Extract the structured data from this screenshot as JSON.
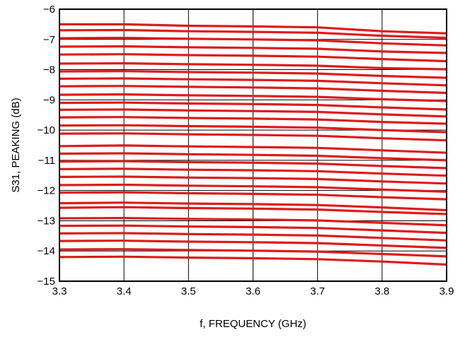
{
  "chart_data": {
    "type": "line",
    "title": "",
    "xlabel": "f, FREQUENCY (GHz)",
    "ylabel": "S31, PEAKING (dB)",
    "xlim": [
      3.3,
      3.9
    ],
    "ylim": [
      -15,
      -6
    ],
    "x_ticks": [
      3.3,
      3.4,
      3.5,
      3.6,
      3.7,
      3.8,
      3.9
    ],
    "x_tick_labels": [
      "3.3",
      "3.4",
      "3.5",
      "3.6",
      "3.7",
      "3.8",
      "3.9"
    ],
    "y_ticks": [
      -6,
      -7,
      -8,
      -9,
      -10,
      -11,
      -12,
      -13,
      -14,
      -15
    ],
    "y_tick_labels": [
      "−6",
      "−7",
      "−8",
      "−9",
      "−10",
      "−11",
      "−12",
      "−13",
      "−14",
      "−15"
    ],
    "grid": true,
    "line_color": "#dd1c1c",
    "grid_color": "#000000",
    "x": [
      3.3,
      3.4,
      3.5,
      3.6,
      3.7,
      3.8,
      3.9
    ],
    "series": [
      {
        "values": [
          -6.5,
          -6.5,
          -6.55,
          -6.57,
          -6.6,
          -6.73,
          -6.8
        ]
      },
      {
        "values": [
          -6.7,
          -6.69,
          -6.73,
          -6.75,
          -6.78,
          -6.88,
          -6.95
        ]
      },
      {
        "values": [
          -6.96,
          -6.95,
          -6.98,
          -7.0,
          -7.03,
          -7.13,
          -7.2
        ]
      },
      {
        "values": [
          -7.24,
          -7.23,
          -7.26,
          -7.28,
          -7.31,
          -7.4,
          -7.45
        ]
      },
      {
        "values": [
          -7.5,
          -7.49,
          -7.52,
          -7.54,
          -7.57,
          -7.65,
          -7.72
        ]
      },
      {
        "values": [
          -7.8,
          -7.79,
          -7.82,
          -7.84,
          -7.87,
          -7.95,
          -7.99
        ]
      },
      {
        "values": [
          -8.06,
          -8.05,
          -8.08,
          -8.1,
          -8.13,
          -8.21,
          -8.27
        ]
      },
      {
        "values": [
          -8.3,
          -8.29,
          -8.32,
          -8.34,
          -8.37,
          -8.45,
          -8.52
        ]
      },
      {
        "values": [
          -8.55,
          -8.54,
          -8.57,
          -8.59,
          -8.62,
          -8.7,
          -8.77
        ]
      },
      {
        "values": [
          -8.83,
          -8.82,
          -8.85,
          -8.87,
          -8.9,
          -8.98,
          -9.04
        ]
      },
      {
        "values": [
          -9.1,
          -9.09,
          -9.12,
          -9.14,
          -9.17,
          -9.25,
          -9.32
        ]
      },
      {
        "values": [
          -9.33,
          -9.32,
          -9.35,
          -9.37,
          -9.4,
          -9.48,
          -9.55
        ]
      },
      {
        "values": [
          -9.58,
          -9.57,
          -9.6,
          -9.62,
          -9.65,
          -9.73,
          -9.79
        ]
      },
      {
        "values": [
          -9.85,
          -9.84,
          -9.87,
          -9.89,
          -9.92,
          -10.0,
          -10.07
        ]
      },
      {
        "values": [
          -10.12,
          -10.11,
          -10.14,
          -10.16,
          -10.19,
          -10.27,
          -10.34
        ]
      },
      {
        "values": [
          -10.53,
          -10.51,
          -10.54,
          -10.56,
          -10.59,
          -10.67,
          -10.75
        ]
      },
      {
        "values": [
          -10.78,
          -10.77,
          -10.8,
          -10.82,
          -10.85,
          -10.93,
          -11.0
        ]
      },
      {
        "values": [
          -11.04,
          -11.03,
          -11.06,
          -11.08,
          -11.11,
          -11.19,
          -11.26
        ]
      },
      {
        "values": [
          -11.29,
          -11.28,
          -11.31,
          -11.33,
          -11.36,
          -11.44,
          -11.51
        ]
      },
      {
        "values": [
          -11.55,
          -11.54,
          -11.57,
          -11.59,
          -11.62,
          -11.7,
          -11.77
        ]
      },
      {
        "values": [
          -11.82,
          -11.81,
          -11.84,
          -11.86,
          -11.89,
          -11.97,
          -12.04
        ]
      },
      {
        "values": [
          -12.07,
          -12.06,
          -12.09,
          -12.11,
          -12.14,
          -12.22,
          -12.29
        ]
      },
      {
        "values": [
          -12.42,
          -12.4,
          -12.43,
          -12.45,
          -12.48,
          -12.56,
          -12.65
        ]
      },
      {
        "values": [
          -12.57,
          -12.55,
          -12.58,
          -12.6,
          -12.63,
          -12.71,
          -12.78
        ]
      },
      {
        "values": [
          -12.92,
          -12.91,
          -12.94,
          -12.96,
          -12.99,
          -13.07,
          -13.15
        ]
      },
      {
        "values": [
          -13.17,
          -13.16,
          -13.19,
          -13.21,
          -13.24,
          -13.32,
          -13.4
        ]
      },
      {
        "values": [
          -13.42,
          -13.41,
          -13.44,
          -13.46,
          -13.49,
          -13.57,
          -13.65
        ]
      },
      {
        "values": [
          -13.67,
          -13.66,
          -13.69,
          -13.71,
          -13.74,
          -13.82,
          -13.9
        ]
      },
      {
        "values": [
          -13.95,
          -13.94,
          -13.97,
          -13.99,
          -14.02,
          -14.1,
          -14.18
        ]
      },
      {
        "values": [
          -14.2,
          -14.19,
          -14.22,
          -14.24,
          -14.27,
          -14.35,
          -14.45
        ]
      }
    ]
  }
}
